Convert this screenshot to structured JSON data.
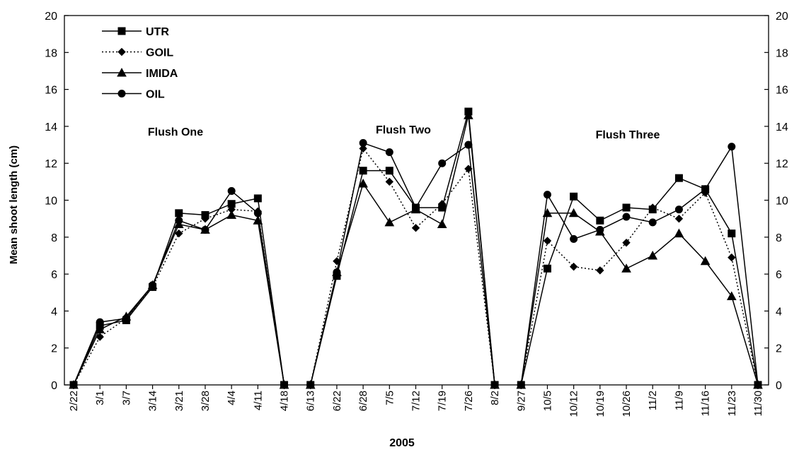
{
  "chart_data": {
    "type": "line",
    "title": "",
    "xlabel": "2005",
    "ylabel": "Mean shoot length (cm)",
    "ylim": [
      0,
      20
    ],
    "yticks": [
      0,
      2,
      4,
      6,
      8,
      10,
      12,
      14,
      16,
      18,
      20
    ],
    "secondary_y_axis": true,
    "grid": false,
    "legend_position": "top-left",
    "categories": [
      "2/22",
      "3/1",
      "3/7",
      "3/14",
      "3/21",
      "3/28",
      "4/4",
      "4/11",
      "4/18",
      "6/13",
      "6/22",
      "6/28",
      "7/5",
      "7/12",
      "7/19",
      "7/26",
      "8/2",
      "9/27",
      "10/5",
      "10/12",
      "10/19",
      "10/26",
      "11/2",
      "11/9",
      "11/16",
      "11/23",
      "11/30"
    ],
    "groups": [
      {
        "label": "Flush One",
        "start": 0,
        "end": 8
      },
      {
        "label": "Flush Two",
        "start": 9,
        "end": 16
      },
      {
        "label": "Flush Three",
        "start": 17,
        "end": 26
      }
    ],
    "series": [
      {
        "name": "UTR",
        "marker": "square",
        "dash": "solid",
        "values": [
          0,
          3.2,
          3.5,
          5.3,
          9.3,
          9.2,
          9.8,
          10.1,
          0,
          0,
          5.9,
          11.6,
          11.6,
          9.6,
          9.6,
          14.8,
          0,
          0,
          6.3,
          10.2,
          8.9,
          9.6,
          9.5,
          11.2,
          10.6,
          8.2,
          0
        ]
      },
      {
        "name": "GOIL",
        "marker": "diamond",
        "dash": "dotted",
        "values": [
          0,
          2.6,
          3.6,
          5.3,
          8.2,
          9.0,
          9.5,
          9.4,
          0,
          0,
          6.7,
          12.8,
          11.0,
          8.5,
          9.8,
          11.7,
          0,
          0,
          7.8,
          6.4,
          6.2,
          7.7,
          9.6,
          9.0,
          10.4,
          6.9,
          0
        ]
      },
      {
        "name": "IMIDA",
        "marker": "triangle",
        "dash": "solid",
        "values": [
          0,
          3.0,
          3.7,
          5.4,
          8.7,
          8.4,
          9.2,
          8.9,
          0,
          0,
          6.1,
          10.9,
          8.8,
          9.5,
          8.7,
          14.6,
          0,
          0,
          9.3,
          9.3,
          8.3,
          6.3,
          7.0,
          8.2,
          6.7,
          4.8,
          0
        ]
      },
      {
        "name": "OIL",
        "marker": "circle",
        "dash": "solid",
        "values": [
          0,
          3.4,
          3.6,
          5.4,
          8.9,
          8.4,
          10.5,
          9.3,
          0,
          0,
          6.1,
          13.1,
          12.6,
          9.6,
          12.0,
          13.0,
          0,
          0,
          10.3,
          7.9,
          8.4,
          9.1,
          8.8,
          9.5,
          10.6,
          12.9,
          0
        ]
      }
    ]
  }
}
